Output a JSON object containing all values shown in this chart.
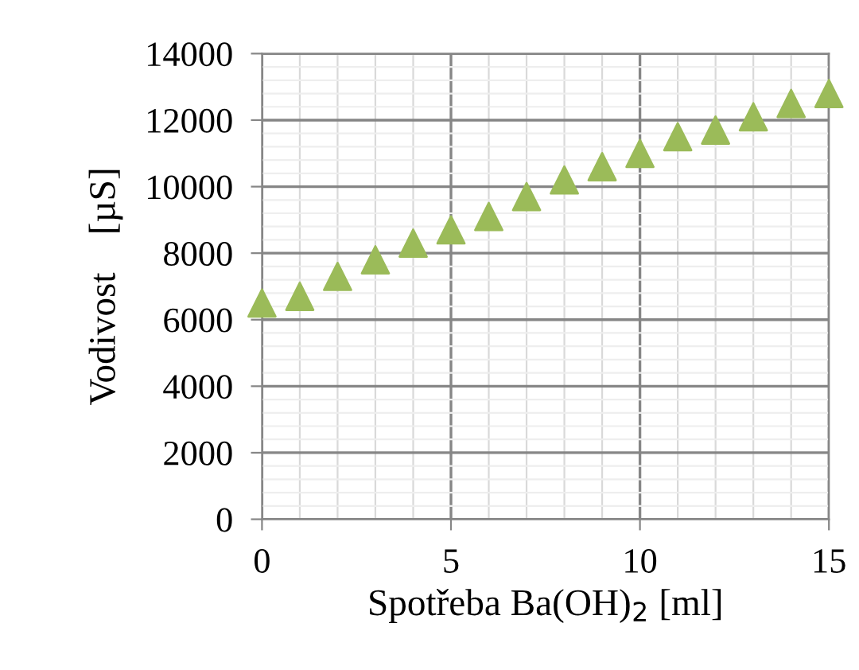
{
  "chart_data": {
    "type": "scatter",
    "xlabel": "Spotřeba Ba(OH)$_{2}$ [ml]",
    "ylabel": "Vodivost    [µS]",
    "x": [
      0,
      1,
      2,
      3,
      4,
      5,
      6,
      7,
      8,
      9,
      10,
      11,
      12,
      13,
      14,
      15
    ],
    "series": [
      {
        "color": "#9bbb59",
        "values": [
          6500,
          6700,
          7300,
          7800,
          8300,
          8700,
          9100,
          9700,
          10200,
          10600,
          11000,
          11500,
          11700,
          12100,
          12500,
          12800
        ]
      }
    ],
    "xlim": [
      0,
      15
    ],
    "xticks": [
      0,
      5,
      10,
      15
    ],
    "ylim": [
      0,
      14000
    ],
    "yticks": [
      0,
      2000,
      4000,
      6000,
      8000,
      10000,
      12000,
      14000
    ],
    "grid": true,
    "marker": "triangle",
    "legend": false
  }
}
